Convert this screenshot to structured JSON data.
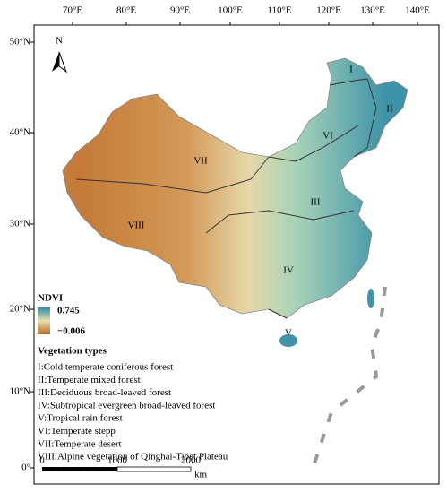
{
  "longitude_labels": [
    "70°E",
    "80°E",
    "90°E",
    "100°E",
    "110°E",
    "120°E",
    "130°E",
    "140°E"
  ],
  "latitude_labels": [
    "50°N",
    "40°N",
    "30°N",
    "20°N",
    "10°N",
    "0°"
  ],
  "north_label": "N",
  "regions": [
    "I",
    "II",
    "III",
    "IV",
    "V",
    "VI",
    "VII",
    "VIII"
  ],
  "legend": {
    "title": "NDVI",
    "max": "0.745",
    "min": "−0.006"
  },
  "vegetation_types": {
    "title": "Vegetation types",
    "items": [
      "I:Cold temperate coniferous forest",
      "II:Temperate mixed forest",
      "III:Deciduous broad-leaved forest",
      "IV:Subtropical evergreen broad-leaved forest",
      "V:Tropical rain forest",
      "VI:Temperate stepp",
      "VII:Temperate desert",
      "VIII:Alpine vegetation of Qinghai-Tibet Plateau"
    ]
  },
  "scale_bar": {
    "labels": [
      "0",
      "1000",
      "2000"
    ],
    "unit": "km"
  }
}
